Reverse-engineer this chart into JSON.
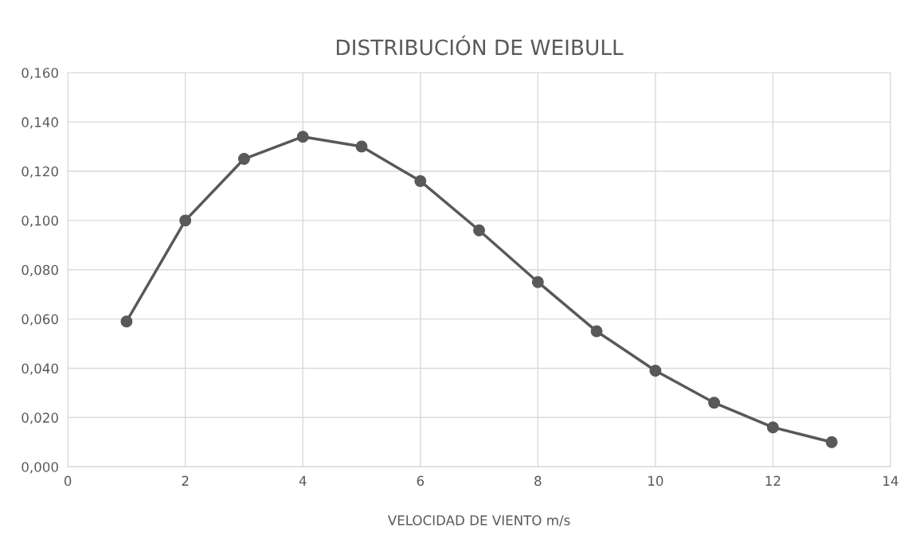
{
  "chart_data": {
    "type": "line",
    "title": "DISTRIBUCIÓN DE WEIBULL",
    "xlabel": "VELOCIDAD DE VIENTO m/s",
    "x": [
      1,
      2,
      3,
      4,
      5,
      6,
      7,
      8,
      9,
      10,
      11,
      12,
      13
    ],
    "series": [
      {
        "color": "#595959",
        "values": [
          0.059,
          0.1,
          0.125,
          0.134,
          0.13,
          0.116,
          0.096,
          0.075,
          0.055,
          0.039,
          0.026,
          0.016,
          0.01
        ]
      }
    ],
    "xlim": [
      0,
      14
    ],
    "xticks": [
      0,
      2,
      4,
      6,
      8,
      10,
      12,
      14
    ],
    "ylim": [
      0,
      0.16
    ],
    "yticks": [
      {
        "value": 0,
        "label": "0,000"
      },
      {
        "value": 0.02,
        "label": "0,020"
      },
      {
        "value": 0.04,
        "label": "0,040"
      },
      {
        "value": 0.06,
        "label": "0,060"
      },
      {
        "value": 0.08,
        "label": "0,080"
      },
      {
        "value": 0.1,
        "label": "0,100"
      },
      {
        "value": 0.12,
        "label": "0,120"
      },
      {
        "value": 0.14,
        "label": "0,140"
      },
      {
        "value": 0.16,
        "label": "0,160"
      }
    ],
    "grid": true,
    "marker": "circle",
    "line_style": "solid",
    "legend": false
  }
}
